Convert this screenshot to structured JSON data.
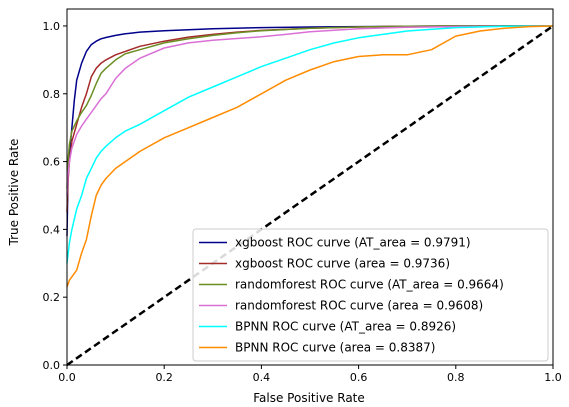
{
  "chart_data": {
    "type": "line",
    "title": "",
    "xlabel": "False Positive Rate",
    "ylabel": "True Positive Rate",
    "xlim": [
      0.0,
      1.0
    ],
    "ylim": [
      0.0,
      1.05
    ],
    "x_ticks": [
      "0.0",
      "0.2",
      "0.4",
      "0.6",
      "0.8",
      "1.0"
    ],
    "y_ticks": [
      "0.0",
      "0.2",
      "0.4",
      "0.6",
      "0.8",
      "1.0"
    ],
    "grid": false,
    "legend_position": "lower-right",
    "diagonal": {
      "name": "",
      "color": "#000000",
      "style": "dashed",
      "x": [
        0,
        1
      ],
      "y": [
        0,
        1
      ]
    },
    "series": [
      {
        "name": "xgboost ROC curve (AT_area = 0.9791)",
        "color": "#00008b",
        "x": [
          0,
          0.002,
          0.005,
          0.01,
          0.015,
          0.02,
          0.03,
          0.04,
          0.05,
          0.06,
          0.07,
          0.08,
          0.1,
          0.12,
          0.15,
          0.2,
          0.25,
          0.3,
          0.4,
          0.5,
          0.6,
          0.7,
          0.8,
          0.9,
          1.0
        ],
        "y": [
          0.38,
          0.55,
          0.62,
          0.7,
          0.78,
          0.84,
          0.89,
          0.925,
          0.945,
          0.955,
          0.962,
          0.966,
          0.972,
          0.977,
          0.982,
          0.986,
          0.989,
          0.992,
          0.995,
          0.997,
          0.998,
          0.999,
          1.0,
          1.0,
          1.0
        ]
      },
      {
        "name": "xgboost ROC curve (area = 0.9736)",
        "color": "#a52a2a",
        "x": [
          0,
          0.002,
          0.005,
          0.01,
          0.02,
          0.03,
          0.04,
          0.05,
          0.06,
          0.07,
          0.08,
          0.1,
          0.12,
          0.15,
          0.2,
          0.25,
          0.3,
          0.35,
          0.4,
          0.5,
          0.6,
          0.7,
          0.8,
          0.9,
          1.0
        ],
        "y": [
          0.45,
          0.54,
          0.6,
          0.66,
          0.71,
          0.76,
          0.8,
          0.85,
          0.875,
          0.89,
          0.9,
          0.915,
          0.925,
          0.94,
          0.955,
          0.967,
          0.975,
          0.982,
          0.987,
          0.993,
          0.997,
          0.999,
          1.0,
          1.0,
          1.0
        ]
      },
      {
        "name": "randomforest ROC curve (AT_area = 0.9664)",
        "color": "#6b8e23",
        "x": [
          0,
          0.002,
          0.005,
          0.01,
          0.02,
          0.03,
          0.04,
          0.05,
          0.06,
          0.07,
          0.08,
          0.1,
          0.12,
          0.15,
          0.2,
          0.25,
          0.3,
          0.35,
          0.4,
          0.5,
          0.6,
          0.7,
          0.8,
          0.9,
          1.0
        ],
        "y": [
          0.52,
          0.6,
          0.65,
          0.69,
          0.72,
          0.745,
          0.765,
          0.795,
          0.83,
          0.86,
          0.875,
          0.9,
          0.918,
          0.93,
          0.95,
          0.962,
          0.972,
          0.98,
          0.986,
          0.993,
          0.997,
          0.999,
          1.0,
          1.0,
          1.0
        ]
      },
      {
        "name": "randomforest ROC curve (area = 0.9608)",
        "color": "#da70d6",
        "x": [
          0,
          0.002,
          0.005,
          0.01,
          0.02,
          0.03,
          0.04,
          0.05,
          0.06,
          0.07,
          0.08,
          0.1,
          0.12,
          0.15,
          0.2,
          0.25,
          0.3,
          0.35,
          0.4,
          0.45,
          0.5,
          0.6,
          0.7,
          0.8,
          0.9,
          1.0
        ],
        "y": [
          0.5,
          0.56,
          0.6,
          0.64,
          0.68,
          0.705,
          0.725,
          0.745,
          0.765,
          0.785,
          0.8,
          0.845,
          0.875,
          0.905,
          0.935,
          0.95,
          0.958,
          0.963,
          0.968,
          0.975,
          0.983,
          0.992,
          0.996,
          0.998,
          0.999,
          1.0
        ]
      },
      {
        "name": "BPNN ROC curve (AT_area = 0.8926)",
        "color": "#00ffff",
        "x": [
          0,
          0.005,
          0.01,
          0.02,
          0.03,
          0.04,
          0.05,
          0.06,
          0.07,
          0.08,
          0.1,
          0.12,
          0.15,
          0.2,
          0.25,
          0.3,
          0.35,
          0.4,
          0.45,
          0.5,
          0.55,
          0.6,
          0.65,
          0.7,
          0.8,
          0.9,
          1.0
        ],
        "y": [
          0.3,
          0.36,
          0.4,
          0.46,
          0.5,
          0.55,
          0.58,
          0.61,
          0.63,
          0.645,
          0.67,
          0.69,
          0.71,
          0.75,
          0.79,
          0.82,
          0.85,
          0.88,
          0.905,
          0.93,
          0.95,
          0.965,
          0.975,
          0.985,
          0.995,
          0.999,
          1.0
        ]
      },
      {
        "name": "BPNN ROC curve (area = 0.8387)",
        "color": "#ff8c00",
        "x": [
          0,
          0.005,
          0.01,
          0.02,
          0.03,
          0.04,
          0.05,
          0.06,
          0.07,
          0.08,
          0.1,
          0.12,
          0.15,
          0.2,
          0.25,
          0.3,
          0.35,
          0.4,
          0.45,
          0.5,
          0.55,
          0.6,
          0.65,
          0.7,
          0.75,
          0.8,
          0.85,
          0.9,
          0.95,
          1.0
        ],
        "y": [
          0.23,
          0.25,
          0.26,
          0.28,
          0.33,
          0.37,
          0.44,
          0.5,
          0.53,
          0.55,
          0.58,
          0.6,
          0.63,
          0.67,
          0.7,
          0.73,
          0.76,
          0.8,
          0.84,
          0.87,
          0.895,
          0.91,
          0.915,
          0.915,
          0.93,
          0.97,
          0.985,
          0.993,
          0.998,
          1.0
        ]
      }
    ]
  }
}
